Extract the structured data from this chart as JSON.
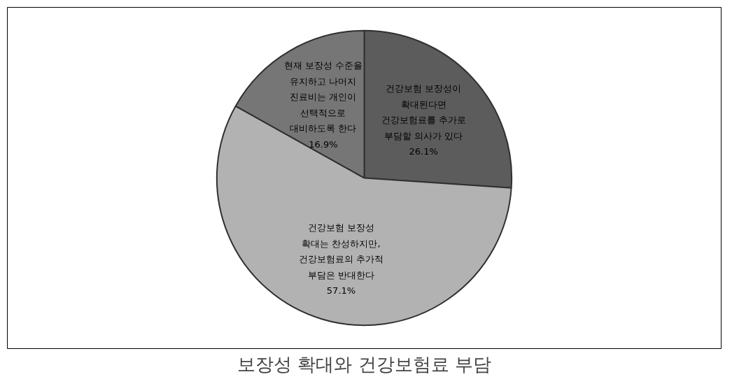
{
  "chart_data": {
    "type": "pie",
    "title": "보장성 확대와 건강보험료 부담",
    "categories": [
      "건강보험 보장성이 확대된다면 건강보험료를 추가로 부담할 의사가 있다",
      "건강보험 보장성 확대는 찬성하지만, 건강보험료의 추가적 부담은 반대한다",
      "현재 보장성 수준을 유지하고 나머지 진료비는 개인이 선택적으로 대비하도록 한다"
    ],
    "values": [
      26.1,
      57.1,
      16.9
    ],
    "colors": [
      "#5c5c5c",
      "#b2b2b2",
      "#767676"
    ],
    "value_labels": [
      "26.1%",
      "57.1%",
      "16.9%"
    ],
    "legend": false
  }
}
